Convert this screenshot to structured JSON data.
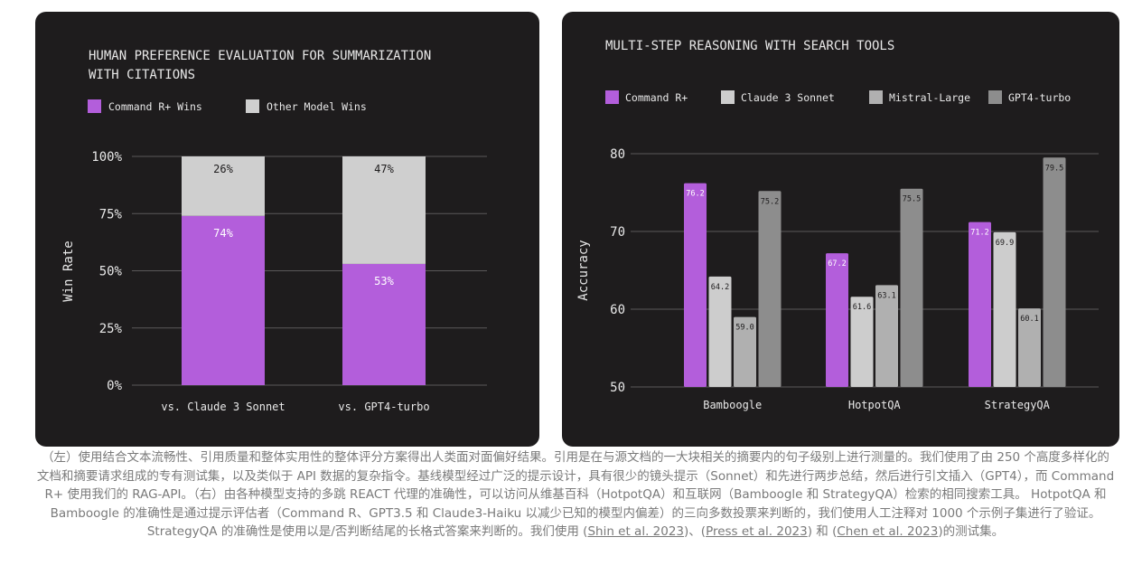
{
  "colors": {
    "background": "#1e1c1d",
    "grid": "#5a5859",
    "text": "#e8e8e8",
    "command_r": "#b35edb",
    "claude": "#cdcdcd",
    "mistral": "#b0b0b0",
    "gpt4": "#8d8d8d",
    "other": "#cfcfcf"
  },
  "chart_data": [
    {
      "type": "bar",
      "stacked": true,
      "title_lines": [
        "HUMAN PREFERENCE EVALUATION FOR SUMMARIZATION",
        "WITH CITATIONS"
      ],
      "ylabel": "Win Rate",
      "xlabel": "",
      "ylim": [
        0,
        100
      ],
      "yticks": [
        "0%",
        "25%",
        "50%",
        "75%",
        "100%"
      ],
      "legend_position": "top-left",
      "categories": [
        "vs. Claude 3 Sonnet",
        "vs. GPT4-turbo"
      ],
      "series": [
        {
          "name": "Command R+ Wins",
          "values": [
            74,
            53
          ],
          "labels": [
            "74%",
            "53%"
          ],
          "color": "#b35edb"
        },
        {
          "name": "Other Model Wins",
          "values": [
            26,
            47
          ],
          "labels": [
            "26%",
            "47%"
          ],
          "color": "#cfcfcf"
        }
      ]
    },
    {
      "type": "bar",
      "title": "MULTI-STEP REASONING WITH SEARCH TOOLS",
      "ylabel": "Accuracy",
      "xlabel": "",
      "ylim": [
        50,
        80
      ],
      "yticks": [
        "50",
        "60",
        "70",
        "80"
      ],
      "legend_position": "top-left",
      "categories": [
        "Bamboogle",
        "HotpotQA",
        "StrategyQA"
      ],
      "series": [
        {
          "name": "Command R+",
          "values": [
            76.2,
            67.2,
            71.2
          ],
          "labels": [
            "76.2",
            "67.2",
            "71.2"
          ],
          "color": "#b35edb"
        },
        {
          "name": "Claude 3 Sonnet",
          "values": [
            64.2,
            61.6,
            69.9
          ],
          "labels": [
            "64.2",
            "61.6",
            "69.9"
          ],
          "color": "#cdcdcd"
        },
        {
          "name": "Mistral-Large",
          "values": [
            59.0,
            63.1,
            60.1
          ],
          "labels": [
            "59.0",
            "63.1",
            "60.1"
          ],
          "color": "#b0b0b0"
        },
        {
          "name": "GPT4-turbo",
          "values": [
            75.2,
            75.5,
            79.5
          ],
          "labels": [
            "75.2",
            "75.5",
            "79.5"
          ],
          "color": "#8d8d8d"
        }
      ]
    }
  ],
  "caption": {
    "text": "（左）使用结合文本流畅性、引用质量和整体实用性的整体评分方案得出人类面对面偏好结果。引用是在与源文档的一大块相关的摘要内的句子级别上进行测量的。我们使用了由 250 个高度多样化的文档和摘要请求组成的专有测试集，以及类似于 API 数据的复杂指令。基线模型经过广泛的提示设计，具有很少的镜头提示（Sonnet）和先进行两步总结，然后进行引文插入（GPT4），而 Command R+ 使用我们的 RAG-API。（右）由各种模型支持的多跳 REACT 代理的准确性，可以访问从维基百科（HotpotQA）和互联网（Bamboogle 和 StrategyQA）检索的相同搜索工具。 HotpotQA 和 Bamboogle 的准确性是通过提示评估者（Command R、GPT3.5 和 Claude3-Haiku 以减少已知的模型内偏差）的三向多数投票来判断的，我们使用人工注释对 1000 个示例子集进行了验证。 StrategyQA 的准确性是使用以是/否判断结尾的长格式答案来判断的。我们使用 (",
    "ref1": "Shin et al. 2023",
    "sep1": ")、(",
    "ref2": "Press et al. 2023",
    "sep2": ") 和 (",
    "ref3": "Chen et al. 2023",
    "end": ")的测试集。"
  }
}
